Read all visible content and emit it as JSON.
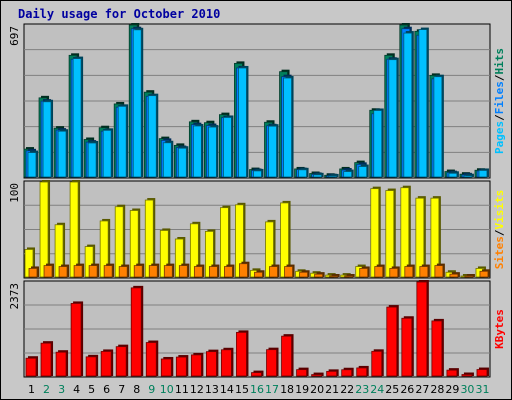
{
  "title": "Daily usage for October 2010",
  "colors": {
    "title": "#0000a0",
    "pages": "#00c0ff",
    "files": "#0080ff",
    "hits": "#00805c",
    "sites": "#ff8000",
    "visits": "#ffff00",
    "kbytes": "#ff0000",
    "panel_bg": "#c0c0c0",
    "weekend_day": "#00805c"
  },
  "chart_data": [
    {
      "type": "bar",
      "panel": "hits-files-pages",
      "y_max_label": "697",
      "ylim": [
        0,
        697
      ],
      "right_label": [
        "Pages",
        "Files",
        "Hits"
      ],
      "series": [
        {
          "name": "Hits",
          "values": [
            128,
            363,
            224,
            558,
            172,
            226,
            335,
            697,
            389,
            176,
            145,
            253,
            249,
            286,
            521,
            34,
            251,
            483,
            37,
            16,
            8,
            37,
            66,
            306,
            558,
            697,
            668,
            466,
            25,
            13,
            31
          ]
        },
        {
          "name": "Files",
          "values": [
            120,
            348,
            215,
            540,
            160,
            210,
            320,
            680,
            370,
            168,
            135,
            240,
            236,
            272,
            500,
            30,
            235,
            460,
            34,
            12,
            6,
            32,
            58,
            290,
            540,
            680,
            650,
            450,
            20,
            10,
            28
          ]
        },
        {
          "name": "Pages",
          "values": [
            112,
            345,
            210,
            543,
            156,
            214,
            324,
            675,
            373,
            157,
            132,
            234,
            229,
            273,
            500,
            28,
            233,
            454,
            33,
            10,
            5,
            25,
            48,
            305,
            538,
            660,
            676,
            460,
            17,
            6,
            30
          ]
        }
      ]
    },
    {
      "type": "bar",
      "panel": "visits-sites",
      "y_max_label": "100",
      "ylim": [
        0,
        100
      ],
      "right_label": [
        "Sites",
        "Visits"
      ],
      "series": [
        {
          "name": "Visits",
          "values": [
            29,
            100,
            55,
            100,
            32,
            59,
            74,
            70,
            81,
            49,
            40,
            56,
            48,
            73,
            76,
            7,
            58,
            78,
            6,
            4,
            2,
            2,
            11,
            93,
            91,
            94,
            83,
            83,
            5,
            1,
            9
          ]
        },
        {
          "name": "Sites",
          "values": [
            9,
            12,
            11,
            12,
            12,
            12,
            11,
            12,
            12,
            12,
            12,
            11,
            11,
            11,
            14,
            5,
            11,
            11,
            5,
            3,
            1,
            1,
            9,
            11,
            9,
            11,
            11,
            12,
            3,
            1,
            6
          ]
        }
      ]
    },
    {
      "type": "bar",
      "panel": "kbytes",
      "y_max_label": "2373",
      "ylim": [
        0,
        2373
      ],
      "right_label": [
        "KBytes"
      ],
      "series": [
        {
          "name": "KBytes",
          "values": [
            449,
            829,
            601,
            1832,
            484,
            620,
            741,
            2225,
            845,
            430,
            478,
            533,
            615,
            662,
            1101,
            86,
            665,
            1006,
            161,
            36,
            117,
            158,
            204,
            623,
            1740,
            1458,
            2373,
            1391,
            148,
            38,
            163
          ]
        }
      ]
    }
  ],
  "x_labels": [
    "1",
    "2",
    "3",
    "4",
    "5",
    "6",
    "7",
    "8",
    "9",
    "10",
    "11",
    "12",
    "13",
    "14",
    "15",
    "16",
    "17",
    "18",
    "19",
    "20",
    "21",
    "22",
    "23",
    "24",
    "25",
    "26",
    "27",
    "28",
    "29",
    "30",
    "31"
  ],
  "weekend_days": [
    "2",
    "3",
    "9",
    "10",
    "16",
    "17",
    "23",
    "24",
    "30",
    "31"
  ]
}
